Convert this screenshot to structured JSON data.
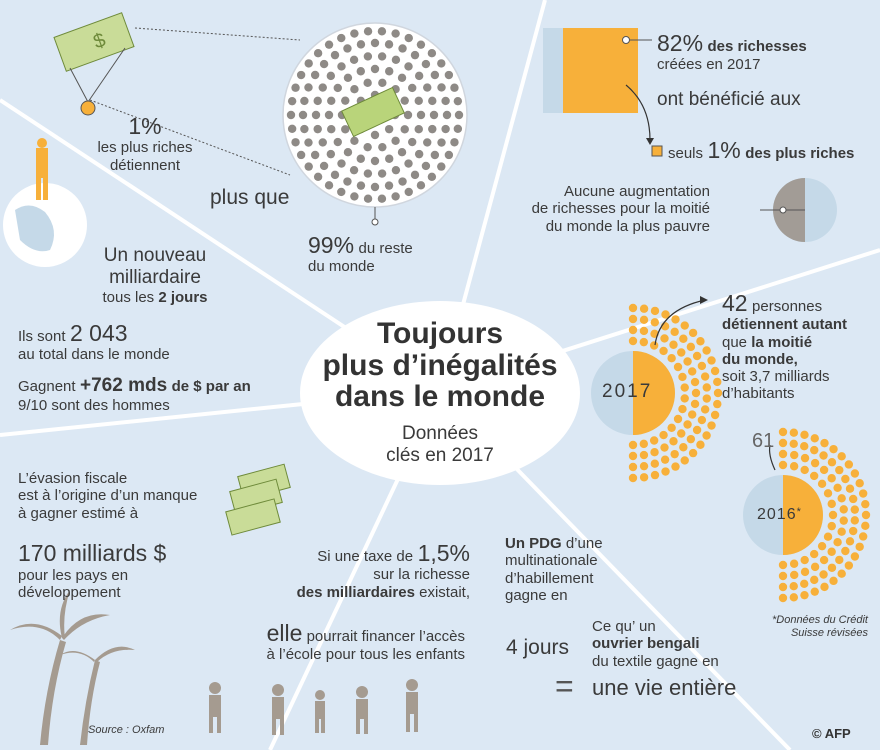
{
  "title": {
    "line1": "Toujours",
    "line2": "plus d’inégalités",
    "line3": "dans le monde",
    "sub1": "Données",
    "sub2": "clés en 2017"
  },
  "q1": {
    "pct": "1%",
    "l1": "les plus riches",
    "l2": "détiennent",
    "mid": "plus que",
    "pct2": "99%",
    "rest": "du reste",
    "monde": "du monde"
  },
  "q2": {
    "pct": "82%",
    "bold": "des richesses",
    "l2": "créées en 2017",
    "l3": "ont bénéficié aux",
    "seuls": "seuls",
    "pct2": "1%",
    "bold2": "des plus riches",
    "a1": "Aucune augmentation",
    "a2": "de richesses pour la moitié",
    "a3": "du monde la plus pauvre"
  },
  "q3": {
    "n1": "Un nouveau",
    "n2": "milliardaire",
    "n3": "tous les",
    "n3b": "2 jours",
    "s1": "Ils sont",
    "s1b": "2 043",
    "s2": "au total dans le monde",
    "g1": "Gagnent",
    "g1b": "+762 mds",
    "g1c": "de $ par an",
    "g2": "9/10 sont des hommes"
  },
  "q4": {
    "num": "42",
    "pers": "personnes",
    "b1": "détiennent autant",
    "que": "que",
    "b2": "la moitié",
    "b3": "du monde,",
    "l4": "soit 3,7 milliards",
    "l5": "d’habitants",
    "y2017": "2017",
    "y2016": "2016",
    "star": "*",
    "n61": "61",
    "note1": "*Données du Crédit",
    "note2": "Suisse révisées"
  },
  "q5": {
    "l1": "L’évasion fiscale",
    "l2": "est à l’origine d’un manque",
    "l3": "à gagner estimé à",
    "big": "170 milliards $",
    "l4": "pour les pays en",
    "l5": "développement"
  },
  "q6": {
    "l1a": "Si une taxe de",
    "l1b": "1,5%",
    "l2": "sur la richesse",
    "l3a": "des milliardaires",
    "l3b": " existait,",
    "elle": "elle",
    "l4": " pourrait financer l’accès",
    "l5": "à l’école pour tous les enfants"
  },
  "q7": {
    "pdg": "Un PDG",
    "l1": " d’une",
    "l2": "multinationale",
    "l3": "d’habillement",
    "l4": "gagne en",
    "jours": "4 jours",
    "c1": "Ce qu’ un",
    "c2": "ouvrier bengali",
    "c3": "du textile gagne en",
    "vie": "une vie entière",
    "eq": "="
  },
  "source": "Source : Oxfam",
  "copyright": "© AFP",
  "colors": {
    "bg": "#dce8f4",
    "orange": "#f7b03a",
    "dot": "#8e8a86",
    "paleblue": "#c5d9e8",
    "ellipse": "#ffffff",
    "text": "#3a3a3a"
  }
}
